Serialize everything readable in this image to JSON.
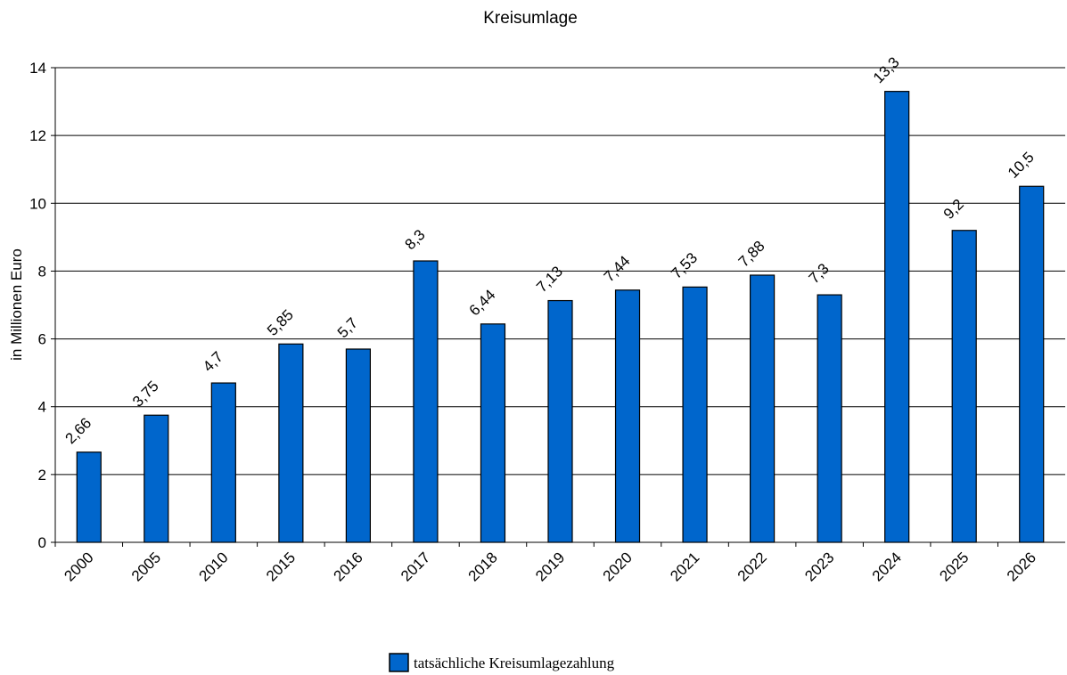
{
  "chart_data": {
    "type": "bar",
    "title": "Kreisumlage",
    "y_label": "in Millionen Euro",
    "categories": [
      "2000",
      "2005",
      "2010",
      "2015",
      "2016",
      "2017",
      "2018",
      "2019",
      "2020",
      "2021",
      "2022",
      "2023",
      "2024",
      "2025",
      "2026"
    ],
    "series": [
      {
        "name": "tatsächliche Kreisumlagezahlung",
        "color": "#0066cc",
        "values": [
          2.66,
          3.75,
          4.7,
          5.85,
          5.7,
          8.3,
          6.44,
          7.13,
          7.44,
          7.53,
          7.88,
          7.3,
          13.3,
          9.2,
          10.5
        ],
        "value_labels": [
          "2,66",
          "3,75",
          "4,7",
          "5,85",
          "5,7",
          "8,3",
          "6,44",
          "7,13",
          "7,44",
          "7,53",
          "7,88",
          "7,3",
          "13,3",
          "9,2",
          "10,5"
        ]
      }
    ],
    "ylim": [
      0,
      14
    ],
    "yticks": [
      0,
      2,
      4,
      6,
      8,
      10,
      12,
      14
    ],
    "grid": true
  }
}
